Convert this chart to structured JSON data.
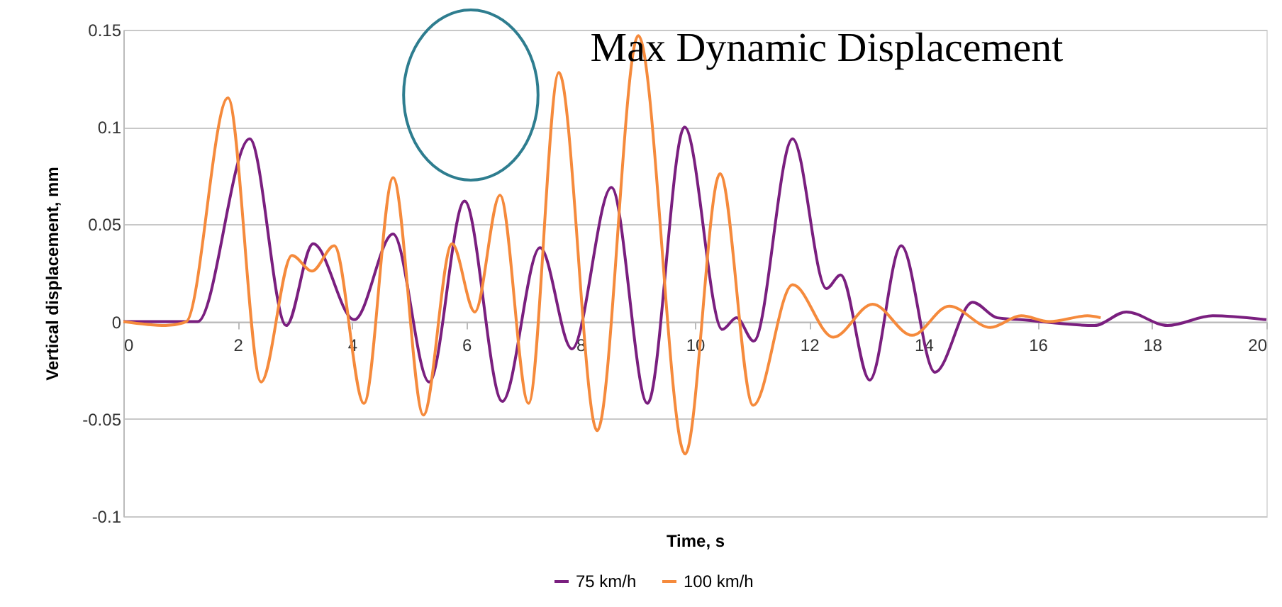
{
  "chart_data": {
    "type": "line",
    "title": "Max Dynamic Displacement",
    "xlabel": "Time, s",
    "ylabel": "Vertical displacement, mm",
    "xlim": [
      0,
      20
    ],
    "xticks": [
      0,
      2,
      4,
      6,
      8,
      10,
      12,
      14,
      16,
      18,
      20
    ],
    "ylim": [
      -0.1,
      0.15
    ],
    "yticks": [
      -0.1,
      -0.05,
      0,
      0.05,
      0.1,
      0.15
    ],
    "grid": "y",
    "legend": "bottom",
    "line_style": "solid",
    "marker": "none",
    "series": [
      {
        "name": "75 km/h",
        "color": "#7a1f7f",
        "x": [
          0,
          0.7,
          1.3,
          2.21,
          2.85,
          3.32,
          4.04,
          4.72,
          5.35,
          5.97,
          6.63,
          7.29,
          7.85,
          8.54,
          9.17,
          9.82,
          10.48,
          10.73,
          11.03,
          11.71,
          12.3,
          12.55,
          13.06,
          13.61,
          14.2,
          14.86,
          15.29,
          15.7,
          16.99,
          17.55,
          18.27,
          19.06,
          20
        ],
        "values": [
          0,
          0,
          0,
          0.094,
          -0.002,
          0.04,
          0.001,
          0.045,
          -0.031,
          0.062,
          -0.041,
          0.038,
          -0.014,
          0.069,
          -0.042,
          0.1,
          -0.004,
          0.002,
          -0.01,
          0.094,
          0.017,
          0.024,
          -0.03,
          0.039,
          -0.026,
          0.01,
          0.002,
          0.001,
          -0.002,
          0.005,
          -0.002,
          0.003,
          0.001
        ]
      },
      {
        "name": "100 km/h",
        "color": "#f58a3c",
        "x": [
          0,
          0.74,
          1.1,
          1.83,
          2.41,
          2.95,
          3.3,
          3.69,
          4.21,
          4.72,
          5.25,
          5.75,
          6.15,
          6.59,
          7.09,
          7.62,
          8.29,
          9.01,
          9.83,
          10.44,
          11.02,
          11.71,
          12.42,
          13.11,
          13.8,
          14.45,
          15.17,
          15.71,
          16.2,
          16.87,
          17.1
        ],
        "values": [
          0,
          -0.002,
          0,
          0.115,
          -0.031,
          0.034,
          0.026,
          0.039,
          -0.042,
          0.074,
          -0.048,
          0.04,
          0.005,
          0.065,
          -0.042,
          0.128,
          -0.056,
          0.147,
          -0.068,
          0.076,
          -0.043,
          0.019,
          -0.008,
          0.009,
          -0.007,
          0.008,
          -0.003,
          0.003,
          0,
          0.003,
          0.002
        ]
      }
    ]
  }
}
